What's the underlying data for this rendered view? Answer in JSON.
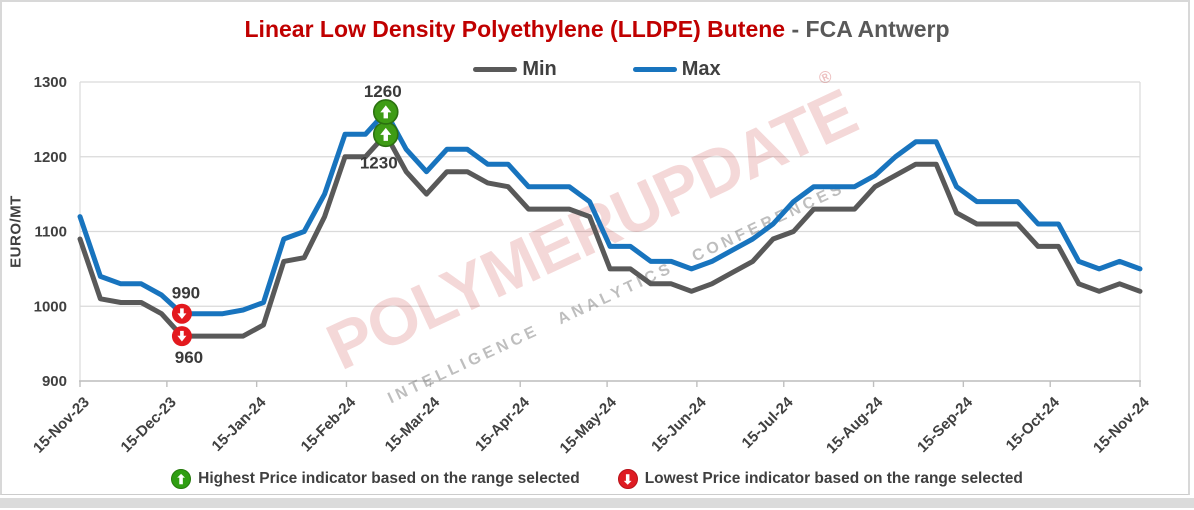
{
  "title": {
    "product": "Linear Low Density Polyethylene (LLDPE) Butene",
    "separator": " - ",
    "market": "FCA Antwerp"
  },
  "legend": [
    {
      "label": "Min",
      "color": "#595959"
    },
    {
      "label": "Max",
      "color": "#1874BE"
    }
  ],
  "y_axis": {
    "label": "EURO/MT",
    "ticks": [
      900,
      1000,
      1100,
      1200,
      1300
    ]
  },
  "x_axis": {
    "labels": [
      "15-Nov-23",
      "15-Dec-23",
      "15-Jan-24",
      "15-Feb-24",
      "15-Mar-24",
      "15-Apr-24",
      "15-May-24",
      "15-Jun-24",
      "15-Jul-24",
      "15-Aug-24",
      "15-Sep-24",
      "15-Oct-24",
      "15-Nov-24"
    ],
    "day_offsets": [
      0,
      30,
      61,
      92,
      121,
      152,
      182,
      213,
      243,
      274,
      305,
      335,
      366
    ],
    "total_days": 366
  },
  "watermark": {
    "text": "POLYMERUPDATE",
    "registered": "®",
    "subtext": "INTELLIGENCE ANALYTICS CONFERENCES"
  },
  "footer": {
    "highest": "Highest Price indicator based on the range selected",
    "lowest": "Lowest Price indicator based on the range selected"
  },
  "chart_data": {
    "type": "line",
    "title": "Linear Low Density Polyethylene (LLDPE) Butene - FCA Antwerp",
    "ylabel": "EURO/MT",
    "ylim": [
      900,
      1300
    ],
    "grid": "horizontal",
    "legend_position": "top-center",
    "x_frequency": "weekly",
    "x_range": [
      "15-Nov-23",
      "15-Nov-24"
    ],
    "series": [
      {
        "name": "Min",
        "color": "#595959",
        "values": [
          1090,
          1010,
          1005,
          1005,
          990,
          960,
          960,
          960,
          960,
          975,
          1060,
          1065,
          1120,
          1200,
          1200,
          1230,
          1180,
          1150,
          1180,
          1180,
          1165,
          1160,
          1130,
          1130,
          1130,
          1120,
          1050,
          1050,
          1030,
          1030,
          1020,
          1030,
          1045,
          1060,
          1090,
          1100,
          1130,
          1130,
          1130,
          1160,
          1175,
          1190,
          1190,
          1125,
          1110,
          1110,
          1110,
          1080,
          1080,
          1030,
          1020,
          1030,
          1020
        ]
      },
      {
        "name": "Max",
        "color": "#1874BE",
        "values": [
          1120,
          1040,
          1030,
          1030,
          1015,
          990,
          990,
          990,
          995,
          1005,
          1090,
          1100,
          1150,
          1230,
          1230,
          1260,
          1210,
          1180,
          1210,
          1210,
          1190,
          1190,
          1160,
          1160,
          1160,
          1140,
          1080,
          1080,
          1060,
          1060,
          1050,
          1060,
          1075,
          1090,
          1110,
          1140,
          1160,
          1160,
          1160,
          1175,
          1200,
          1220,
          1220,
          1160,
          1140,
          1140,
          1140,
          1110,
          1110,
          1060,
          1050,
          1060,
          1050
        ]
      }
    ],
    "annotations": {
      "highest": {
        "week_index": 15,
        "max_value": 1260,
        "min_value": 1230
      },
      "lowest": {
        "week_index": 5,
        "max_value": 990,
        "min_value": 960
      }
    },
    "marker_colors": {
      "high_fill": "#3E9C15",
      "high_ring": "#2B7110",
      "low_fill": "#E3191E"
    }
  }
}
